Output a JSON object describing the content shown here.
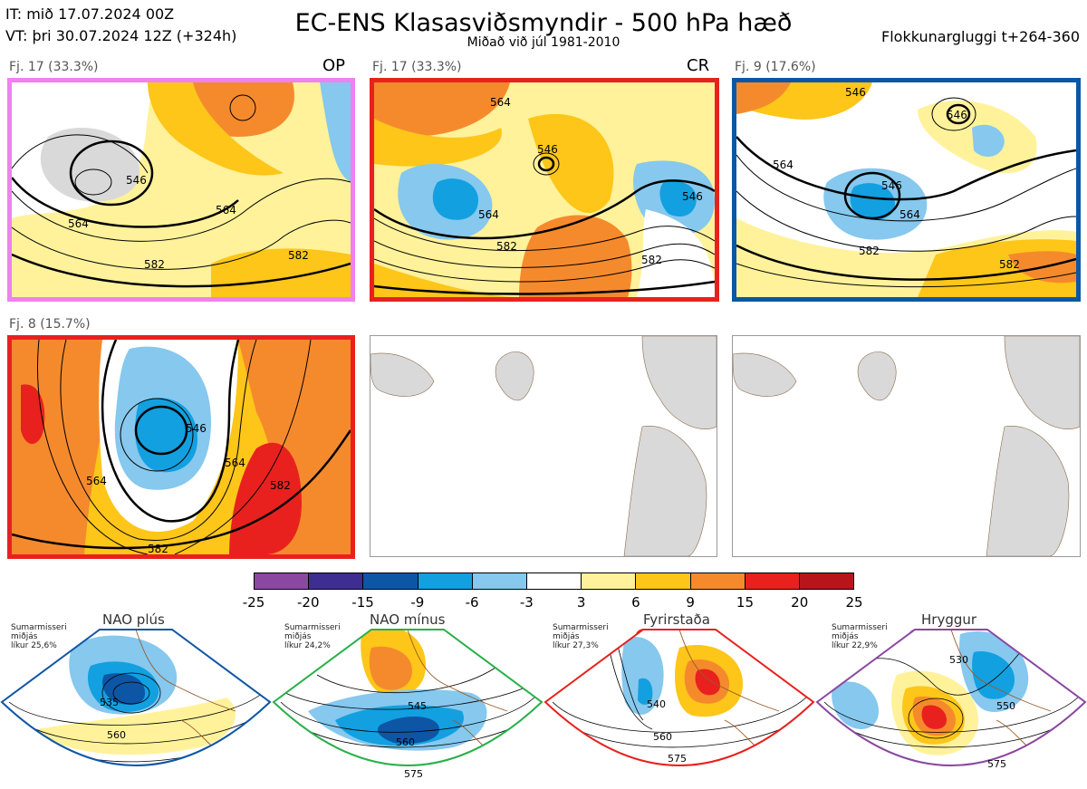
{
  "header": {
    "it_line": "IT: mið 17.07.2024 00Z",
    "vt_line": "VT: þri 30.07.2024 12Z  (+324h)",
    "title": "EC-ENS Klasasviðsmyndir - 500 hPa hæð",
    "subtitle": "Miðað við júl 1981-2010",
    "window": "Flokkunargluggi t+264-360"
  },
  "clusters": [
    {
      "label": "Fj. 17 (33.3%)",
      "tag": "OP",
      "border_color": "#ee82ee",
      "contours": [
        "546",
        "564",
        "582",
        "564",
        "582"
      ]
    },
    {
      "label": "Fj. 17 (33.3%)",
      "tag": "CR",
      "border_color": "#e8211e",
      "contours": [
        "564",
        "546",
        "564",
        "582",
        "582",
        "546"
      ]
    },
    {
      "label": "Fj. 9 (17.6%)",
      "tag": "",
      "border_color": "#0d56a6",
      "contours": [
        "546",
        "564",
        "546",
        "564",
        "582",
        "582",
        "546"
      ]
    },
    {
      "label": "Fj. 8 (15.7%)",
      "tag": "",
      "border_color": "#e8211e",
      "contours": [
        "546",
        "564",
        "582",
        "582",
        "564"
      ]
    }
  ],
  "colorbar": {
    "ticks": [
      "-25",
      "-20",
      "-15",
      "-9",
      "-6",
      "-3",
      "3",
      "6",
      "9",
      "15",
      "20",
      "25"
    ],
    "colors": [
      "#8b48a0",
      "#3f2e92",
      "#0d56a6",
      "#12a0e0",
      "#86c8ee",
      "#ffffff",
      "#fff29b",
      "#fdc619",
      "#f58a2d",
      "#e8211e",
      "#b7151b"
    ]
  },
  "regimes": [
    {
      "name": "NAO plús",
      "note": "Sumarmisseri\nmiðjás\nlíkur 25,6%",
      "color": "#0d56a6",
      "contours": [
        "535",
        "560"
      ]
    },
    {
      "name": "NAO mínus",
      "note": "Sumarmisseri\nmiðjás\nlíkur 24,2%",
      "color": "#28b04a",
      "contours": [
        "545",
        "560",
        "575"
      ]
    },
    {
      "name": "Fyrirstaða",
      "note": "Sumarmisseri\nmiðjás\nlíkur 27,3%",
      "color": "#e8211e",
      "contours": [
        "540",
        "560",
        "575"
      ]
    },
    {
      "name": "Hryggur",
      "note": "Sumarmisseri\nmiðjás\nlíkur 22,9%",
      "color": "#ee82ee",
      "contours": [
        "530",
        "550",
        "575"
      ]
    }
  ]
}
